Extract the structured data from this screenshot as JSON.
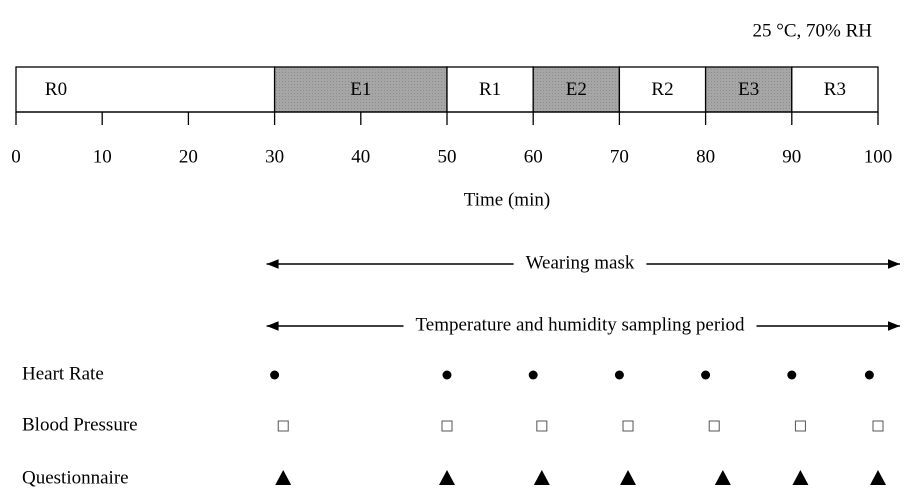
{
  "condition": "25 °C, 70% RH",
  "timeline": {
    "xlim": [
      0,
      100
    ],
    "xticks": [
      0,
      10,
      20,
      30,
      40,
      50,
      60,
      70,
      80,
      90,
      100
    ],
    "axis_label": "Time (min)",
    "segments": [
      {
        "label": "R0",
        "start": 0,
        "end": 30,
        "shaded": false
      },
      {
        "label": "E1",
        "start": 30,
        "end": 50,
        "shaded": true
      },
      {
        "label": "R1",
        "start": 50,
        "end": 60,
        "shaded": false
      },
      {
        "label": "E2",
        "start": 60,
        "end": 70,
        "shaded": true
      },
      {
        "label": "R2",
        "start": 70,
        "end": 80,
        "shaded": false
      },
      {
        "label": "E3",
        "start": 80,
        "end": 90,
        "shaded": true
      },
      {
        "label": "R3",
        "start": 90,
        "end": 100,
        "shaded": false
      }
    ]
  },
  "periods": [
    {
      "label": "Wearing mask",
      "from": 30,
      "to": 100
    },
    {
      "label": "Temperature and humidity sampling period",
      "from": 30,
      "to": 100
    }
  ],
  "measurements": [
    {
      "label": "Heart Rate",
      "marker": "circle",
      "times": [
        30,
        50,
        60,
        70,
        80,
        90,
        99
      ]
    },
    {
      "label": "Blood Pressure",
      "marker": "square",
      "times": [
        31,
        50,
        61,
        71,
        81,
        91,
        100
      ]
    },
    {
      "label": "Questionnaire",
      "marker": "triangle",
      "times": [
        31,
        50,
        61,
        71,
        82,
        91,
        100
      ]
    }
  ]
}
